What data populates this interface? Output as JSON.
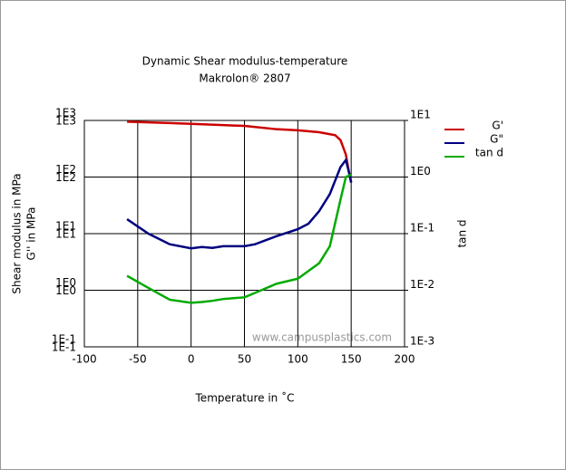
{
  "chart_data": {
    "type": "line",
    "title": "Dynamic Shear modulus-temperature",
    "subtitle": "Makrolon® 2807",
    "xlabel": "Temperature in ˚C",
    "ylabel": [
      "Shear modulus in MPa",
      "G'' in MPa"
    ],
    "y2label": "tan d",
    "annotation": "www.campusplastics.com",
    "xlim": [
      -100,
      200
    ],
    "xticks": [
      -100,
      -50,
      0,
      50,
      100,
      150,
      200
    ],
    "ylim": [
      0.1,
      1000
    ],
    "yticks": [
      {
        "value": 0.1,
        "label": "1E-1"
      },
      {
        "value": 1,
        "label": "1E0"
      },
      {
        "value": 10,
        "label": "1E1"
      },
      {
        "value": 100,
        "label": "1E2"
      },
      {
        "value": 1000,
        "label": "1E3"
      }
    ],
    "y2lim": [
      0.001,
      10
    ],
    "y2ticks": [
      {
        "value": 0.001,
        "label": "1E-3"
      },
      {
        "value": 0.01,
        "label": "1E-2"
      },
      {
        "value": 0.1,
        "label": "1E-1"
      },
      {
        "value": 1,
        "label": "1E0"
      },
      {
        "value": 10,
        "label": "1E1"
      }
    ],
    "log_scale": true,
    "grid": true,
    "legend": "right",
    "series": [
      {
        "name": "G'",
        "color": "#cc0000",
        "x": [
          -60,
          -20,
          0,
          50,
          80,
          100,
          120,
          135,
          140,
          145,
          148,
          150
        ],
        "values": [
          950,
          900,
          870,
          800,
          700,
          670,
          620,
          550,
          450,
          250,
          120,
          80
        ]
      },
      {
        "name": "G\"",
        "color": "#000080",
        "x": [
          -60,
          -40,
          -20,
          0,
          10,
          20,
          30,
          50,
          60,
          80,
          100,
          110,
          120,
          130,
          140,
          145,
          148,
          150
        ],
        "values": [
          18,
          10,
          6.5,
          5.5,
          5.8,
          5.6,
          6,
          6,
          6.5,
          9,
          12,
          15,
          25,
          50,
          150,
          200,
          120,
          80
        ]
      },
      {
        "name": "tan d",
        "color": "#00aa00",
        "axis": "y2",
        "x": [
          -60,
          -40,
          -20,
          0,
          10,
          20,
          30,
          50,
          60,
          80,
          100,
          120,
          130,
          140,
          145,
          150
        ],
        "values": [
          0.018,
          0.011,
          0.0068,
          0.006,
          0.0062,
          0.0065,
          0.007,
          0.0075,
          0.009,
          0.013,
          0.016,
          0.03,
          0.06,
          0.4,
          1.0,
          1.1
        ]
      }
    ]
  }
}
